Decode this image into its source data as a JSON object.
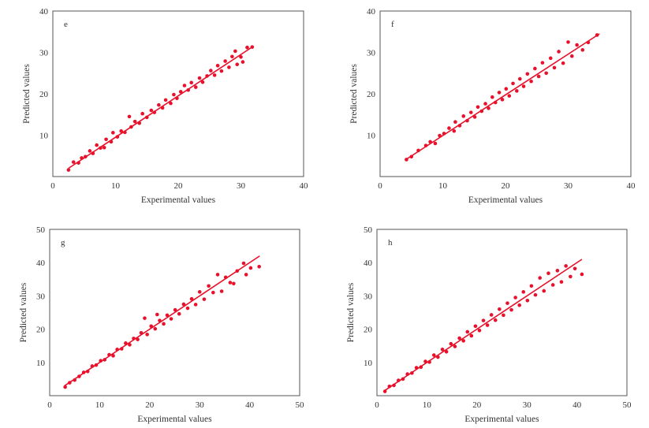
{
  "chart_data": [
    {
      "type": "scatter",
      "panel_label": "e",
      "xlabel": "Experimental values",
      "ylabel": "Predicted values",
      "xlim": [
        0,
        40
      ],
      "ylim": [
        0,
        40
      ],
      "xticks": [
        0,
        10,
        20,
        30,
        40
      ],
      "yticks": [
        10,
        20,
        30,
        40
      ],
      "color": "#e8102a",
      "grid": false,
      "fit_line": [
        [
          2.5,
          2
        ],
        [
          32,
          31.5
        ]
      ],
      "points": [
        [
          2.5,
          1.6
        ],
        [
          3.3,
          3.5
        ],
        [
          4.1,
          3.3
        ],
        [
          4.6,
          4.5
        ],
        [
          5.2,
          4.8
        ],
        [
          5.9,
          6.2
        ],
        [
          6.4,
          5.6
        ],
        [
          7.0,
          7.6
        ],
        [
          7.6,
          6.9
        ],
        [
          8.2,
          7.0
        ],
        [
          8.5,
          9.0
        ],
        [
          9.3,
          8.4
        ],
        [
          9.6,
          10.6
        ],
        [
          10.3,
          9.6
        ],
        [
          10.9,
          11.0
        ],
        [
          11.5,
          10.7
        ],
        [
          12.2,
          14.5
        ],
        [
          12.5,
          12.0
        ],
        [
          13.1,
          13.3
        ],
        [
          13.8,
          12.9
        ],
        [
          14.3,
          15.2
        ],
        [
          15.0,
          14.3
        ],
        [
          15.7,
          16.0
        ],
        [
          16.2,
          15.5
        ],
        [
          16.9,
          17.3
        ],
        [
          17.5,
          16.6
        ],
        [
          18.0,
          18.5
        ],
        [
          18.8,
          17.7
        ],
        [
          19.3,
          19.8
        ],
        [
          19.8,
          18.9
        ],
        [
          20.4,
          20.5
        ],
        [
          21.0,
          22.0
        ],
        [
          21.6,
          20.9
        ],
        [
          22.1,
          22.7
        ],
        [
          22.8,
          21.6
        ],
        [
          23.4,
          23.8
        ],
        [
          23.9,
          22.8
        ],
        [
          24.6,
          24.3
        ],
        [
          25.2,
          25.6
        ],
        [
          25.8,
          24.5
        ],
        [
          26.3,
          26.8
        ],
        [
          26.9,
          25.5
        ],
        [
          27.5,
          27.9
        ],
        [
          28.1,
          26.4
        ],
        [
          28.6,
          29.0
        ],
        [
          29.1,
          30.3
        ],
        [
          29.4,
          27.1
        ],
        [
          30.0,
          28.9
        ],
        [
          30.3,
          27.7
        ],
        [
          31.0,
          31.2
        ],
        [
          31.8,
          31.3
        ]
      ]
    },
    {
      "type": "scatter",
      "panel_label": "f",
      "xlabel": "Experimental values",
      "ylabel": "Predicted values",
      "xlim": [
        0,
        40
      ],
      "ylim": [
        0,
        40
      ],
      "xticks": [
        0,
        10,
        20,
        30,
        40
      ],
      "yticks": [
        10,
        20,
        30,
        40
      ],
      "color": "#e8102a",
      "grid": false,
      "fit_line": [
        [
          4,
          4
        ],
        [
          35,
          34.5
        ]
      ],
      "points": [
        [
          4.2,
          4.1
        ],
        [
          5.0,
          4.8
        ],
        [
          6.1,
          6.3
        ],
        [
          7.3,
          7.5
        ],
        [
          8.0,
          8.4
        ],
        [
          8.8,
          8.0
        ],
        [
          9.5,
          9.9
        ],
        [
          10.2,
          10.4
        ],
        [
          11.0,
          11.7
        ],
        [
          11.8,
          11.0
        ],
        [
          12.0,
          13.2
        ],
        [
          12.7,
          12.3
        ],
        [
          13.3,
          14.6
        ],
        [
          13.9,
          13.5
        ],
        [
          14.5,
          15.5
        ],
        [
          15.1,
          14.4
        ],
        [
          15.6,
          16.8
        ],
        [
          16.2,
          15.8
        ],
        [
          16.8,
          17.6
        ],
        [
          17.3,
          16.5
        ],
        [
          17.9,
          19.2
        ],
        [
          18.4,
          17.9
        ],
        [
          19.0,
          20.3
        ],
        [
          19.5,
          18.6
        ],
        [
          20.1,
          21.2
        ],
        [
          20.6,
          19.5
        ],
        [
          21.2,
          22.5
        ],
        [
          21.8,
          20.7
        ],
        [
          22.3,
          23.6
        ],
        [
          22.9,
          21.8
        ],
        [
          23.5,
          24.8
        ],
        [
          24.1,
          23.0
        ],
        [
          24.7,
          26.1
        ],
        [
          25.3,
          24.2
        ],
        [
          25.9,
          27.5
        ],
        [
          26.5,
          25.0
        ],
        [
          27.2,
          28.6
        ],
        [
          27.8,
          26.3
        ],
        [
          28.5,
          30.2
        ],
        [
          29.2,
          27.4
        ],
        [
          30.0,
          32.5
        ],
        [
          30.6,
          29.1
        ],
        [
          31.4,
          31.8
        ],
        [
          32.3,
          30.6
        ],
        [
          33.2,
          32.4
        ],
        [
          34.6,
          34.2
        ]
      ]
    },
    {
      "type": "scatter",
      "panel_label": "g",
      "xlabel": "Experimental values",
      "ylabel": "Predicted values",
      "xlim": [
        0,
        50
      ],
      "ylim": [
        0,
        50
      ],
      "xticks": [
        0,
        10,
        20,
        30,
        40,
        50
      ],
      "yticks": [
        10,
        20,
        30,
        40,
        50
      ],
      "color": "#e8102a",
      "grid": false,
      "fit_line": [
        [
          3,
          3
        ],
        [
          42,
          42
        ]
      ],
      "points": [
        [
          3.1,
          2.6
        ],
        [
          4.0,
          3.9
        ],
        [
          5.0,
          4.7
        ],
        [
          5.9,
          5.8
        ],
        [
          6.8,
          7.0
        ],
        [
          7.6,
          7.3
        ],
        [
          8.5,
          8.9
        ],
        [
          9.3,
          9.2
        ],
        [
          10.2,
          10.5
        ],
        [
          11.0,
          10.8
        ],
        [
          11.9,
          12.3
        ],
        [
          12.7,
          12.0
        ],
        [
          13.5,
          13.9
        ],
        [
          14.4,
          14.1
        ],
        [
          15.2,
          15.8
        ],
        [
          16.0,
          15.3
        ],
        [
          16.8,
          17.2
        ],
        [
          17.6,
          16.9
        ],
        [
          18.3,
          18.9
        ],
        [
          19.0,
          23.3
        ],
        [
          19.5,
          18.4
        ],
        [
          20.3,
          20.9
        ],
        [
          21.1,
          20.1
        ],
        [
          21.5,
          24.4
        ],
        [
          22.0,
          22.6
        ],
        [
          22.8,
          21.6
        ],
        [
          23.5,
          24.2
        ],
        [
          24.3,
          23.1
        ],
        [
          25.1,
          25.8
        ],
        [
          25.9,
          24.6
        ],
        [
          26.8,
          27.5
        ],
        [
          27.6,
          26.3
        ],
        [
          28.4,
          29.1
        ],
        [
          29.2,
          27.4
        ],
        [
          30.0,
          31.2
        ],
        [
          30.9,
          29.0
        ],
        [
          31.8,
          33.0
        ],
        [
          32.7,
          31.0
        ],
        [
          33.6,
          36.4
        ],
        [
          34.4,
          31.4
        ],
        [
          35.2,
          35.6
        ],
        [
          36.1,
          34.0
        ],
        [
          36.8,
          33.7
        ],
        [
          37.5,
          37.5
        ],
        [
          38.8,
          39.8
        ],
        [
          39.3,
          36.4
        ],
        [
          40.2,
          38.4
        ],
        [
          41.9,
          38.8
        ]
      ]
    },
    {
      "type": "scatter",
      "panel_label": "h",
      "xlabel": "Experimental values",
      "ylabel": "Predicted values",
      "xlim": [
        0,
        50
      ],
      "ylim": [
        0,
        50
      ],
      "xticks": [
        0,
        10,
        20,
        30,
        40,
        50
      ],
      "yticks": [
        10,
        20,
        30,
        40,
        50
      ],
      "color": "#e8102a",
      "grid": false,
      "fit_line": [
        [
          1.5,
          1.5
        ],
        [
          41,
          41
        ]
      ],
      "points": [
        [
          1.6,
          1.3
        ],
        [
          2.5,
          2.8
        ],
        [
          3.4,
          3.1
        ],
        [
          4.3,
          4.6
        ],
        [
          5.2,
          5.0
        ],
        [
          6.1,
          6.5
        ],
        [
          7.0,
          6.8
        ],
        [
          7.9,
          8.4
        ],
        [
          8.8,
          8.6
        ],
        [
          9.7,
          10.3
        ],
        [
          10.5,
          10.1
        ],
        [
          11.4,
          12.2
        ],
        [
          12.2,
          11.6
        ],
        [
          13.1,
          13.9
        ],
        [
          13.9,
          13.2
        ],
        [
          14.8,
          15.6
        ],
        [
          15.6,
          14.8
        ],
        [
          16.5,
          17.3
        ],
        [
          17.3,
          16.5
        ],
        [
          18.1,
          19.2
        ],
        [
          18.9,
          18.0
        ],
        [
          19.7,
          20.9
        ],
        [
          20.5,
          19.6
        ],
        [
          21.3,
          22.6
        ],
        [
          22.1,
          21.2
        ],
        [
          22.9,
          24.3
        ],
        [
          23.7,
          22.7
        ],
        [
          24.5,
          26.0
        ],
        [
          25.3,
          24.2
        ],
        [
          26.1,
          27.8
        ],
        [
          26.9,
          25.8
        ],
        [
          27.7,
          29.5
        ],
        [
          28.5,
          27.2
        ],
        [
          29.3,
          31.2
        ],
        [
          30.1,
          28.6
        ],
        [
          30.9,
          33.0
        ],
        [
          31.7,
          30.3
        ],
        [
          32.6,
          35.4
        ],
        [
          33.4,
          31.5
        ],
        [
          34.3,
          36.8
        ],
        [
          35.2,
          33.3
        ],
        [
          36.1,
          37.6
        ],
        [
          36.9,
          34.2
        ],
        [
          37.8,
          39.0
        ],
        [
          38.7,
          35.8
        ],
        [
          39.6,
          38.2
        ],
        [
          41.0,
          36.5
        ]
      ]
    }
  ]
}
